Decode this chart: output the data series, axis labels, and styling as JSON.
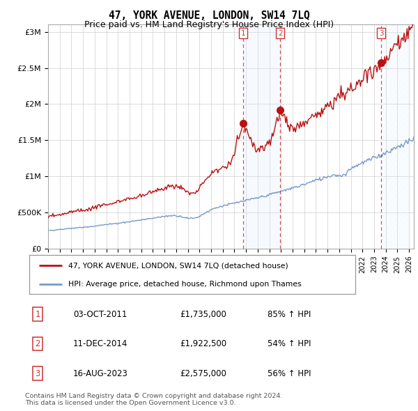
{
  "title": "47, YORK AVENUE, LONDON, SW14 7LQ",
  "subtitle": "Price paid vs. HM Land Registry's House Price Index (HPI)",
  "ylabel_ticks": [
    "£0",
    "£500K",
    "£1M",
    "£1.5M",
    "£2M",
    "£2.5M",
    "£3M"
  ],
  "ytick_values": [
    0,
    500000,
    1000000,
    1500000,
    2000000,
    2500000,
    3000000
  ],
  "ylim": [
    0,
    3100000
  ],
  "sale_color": "#bb1111",
  "hpi_color": "#7799cc",
  "vline_color": "#cc3333",
  "span12_color": "#ddeeff",
  "span3_hatch": "////",
  "span3_color": "#ddeeff",
  "title_fontsize": 10.5,
  "subtitle_fontsize": 9,
  "sales": [
    {
      "date": "2011-10-03",
      "price": 1735000,
      "label": "1"
    },
    {
      "date": "2014-12-11",
      "price": 1922500,
      "label": "2"
    },
    {
      "date": "2023-08-16",
      "price": 2575000,
      "label": "3"
    }
  ],
  "sale_table": [
    {
      "num": "1",
      "date": "03-OCT-2011",
      "price": "£1,735,000",
      "pct": "85% ↑ HPI"
    },
    {
      "num": "2",
      "date": "11-DEC-2014",
      "price": "£1,922,500",
      "pct": "54% ↑ HPI"
    },
    {
      "num": "3",
      "date": "16-AUG-2023",
      "price": "£2,575,000",
      "pct": "56% ↑ HPI"
    }
  ],
  "legend_entries": [
    "47, YORK AVENUE, LONDON, SW14 7LQ (detached house)",
    "HPI: Average price, detached house, Richmond upon Thames"
  ],
  "footnote": "Contains HM Land Registry data © Crown copyright and database right 2024.\nThis data is licensed under the Open Government Licence v3.0.",
  "x_start_year": 1995,
  "x_end_year": 2026,
  "grid_color": "#cccccc"
}
